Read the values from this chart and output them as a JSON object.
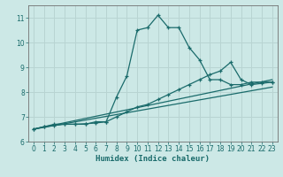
{
  "xlabel": "Humidex (Indice chaleur)",
  "background_color": "#cce8e6",
  "grid_color": "#b8d4d2",
  "line_color": "#1a6b6b",
  "xlim": [
    -0.5,
    23.5
  ],
  "ylim": [
    6.0,
    11.5
  ],
  "yticks": [
    6,
    7,
    8,
    9,
    10,
    11
  ],
  "xticks": [
    0,
    1,
    2,
    3,
    4,
    5,
    6,
    7,
    8,
    9,
    10,
    11,
    12,
    13,
    14,
    15,
    16,
    17,
    18,
    19,
    20,
    21,
    22,
    23
  ],
  "series1_x": [
    0,
    1,
    2,
    3,
    4,
    5,
    6,
    7,
    8,
    9,
    10,
    11,
    12,
    13,
    14,
    15,
    16,
    17,
    18,
    19,
    20,
    21,
    22,
    23
  ],
  "series1_y": [
    6.5,
    6.6,
    6.7,
    6.7,
    6.7,
    6.7,
    6.8,
    6.8,
    7.8,
    8.65,
    10.5,
    10.6,
    11.1,
    10.6,
    10.6,
    9.8,
    9.3,
    8.5,
    8.5,
    8.3,
    8.3,
    8.4,
    8.4,
    8.4
  ],
  "series2_x": [
    0,
    1,
    2,
    3,
    4,
    5,
    6,
    7,
    8,
    9,
    10,
    11,
    12,
    13,
    14,
    15,
    16,
    17,
    18,
    19,
    20,
    21,
    22,
    23
  ],
  "series2_y": [
    6.5,
    6.6,
    6.65,
    6.7,
    6.7,
    6.72,
    6.75,
    6.8,
    7.0,
    7.2,
    7.4,
    7.5,
    7.7,
    7.9,
    8.1,
    8.3,
    8.5,
    8.7,
    8.85,
    9.2,
    8.5,
    8.3,
    8.35,
    8.4
  ],
  "series3_x": [
    0,
    23
  ],
  "series3_y": [
    6.5,
    8.5
  ],
  "series4_x": [
    0,
    23
  ],
  "series4_y": [
    6.5,
    8.2
  ]
}
